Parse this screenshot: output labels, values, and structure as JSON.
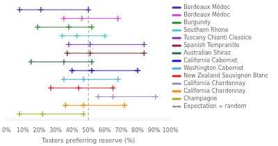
{
  "chart_data": {
    "type": "line",
    "xlabel": "Tasters preferring reserve (%)",
    "xlim": [
      0,
      1.0
    ],
    "xticks": [
      {
        "value": 0,
        "label": "0%"
      },
      {
        "value": 0.1,
        "label": "10%"
      },
      {
        "value": 0.2,
        "label": "20%"
      },
      {
        "value": 0.3,
        "label": "30%"
      },
      {
        "value": 0.4,
        "label": "40%"
      },
      {
        "value": 0.5,
        "label": "50%"
      },
      {
        "value": 0.6,
        "label": "60%"
      },
      {
        "value": 0.7,
        "label": "70%"
      },
      {
        "value": 0.8,
        "label": "80%"
      },
      {
        "value": 0.9,
        "label": "90%"
      },
      {
        "value": 1.0,
        "label": "100%"
      }
    ],
    "grid": false,
    "legend": "upper right",
    "tick_labels": "x",
    "marker": "plus",
    "series": [
      {
        "name": "Bordeaux Médoc",
        "color": "#3333aa",
        "values": [
          0.08,
          0.21,
          0.5
        ]
      },
      {
        "name": "Bordeaux Médoc",
        "color": "#cc44cc",
        "values": [
          0.35,
          0.46,
          0.68
        ]
      },
      {
        "name": "Burgundy",
        "color": "#228822",
        "values": [
          0.19,
          0.38,
          0.52
        ]
      },
      {
        "name": "Southern Rhone",
        "color": "#44cccc",
        "values": [
          0.34,
          0.43,
          0.6
        ]
      },
      {
        "name": "Tuscany Chianti Classico",
        "color": "#7733aa",
        "values": [
          0.38,
          0.51,
          0.84
        ]
      },
      {
        "name": "Spanish Tempranillo",
        "color": "#882222",
        "values": [
          0.37,
          0.51,
          0.84
        ]
      },
      {
        "name": "Australian Shiraz",
        "color": "#226655",
        "values": [
          0.15,
          0.35,
          0.52
        ]
      },
      {
        "name": "California Cabernet",
        "color": "#1111cc",
        "values": [
          0.4,
          0.52,
          0.8
        ]
      },
      {
        "name": "Washington Cabernet",
        "color": "#44aaee",
        "values": [
          0.35,
          0.47,
          0.68
        ]
      },
      {
        "name": "New Zealand Sauvignon Blanc",
        "color": "#cc2222",
        "values": [
          0.27,
          0.44,
          0.65
        ]
      },
      {
        "name": "California Chardonnay",
        "color": "#9988cc",
        "values": [
          0.56,
          0.65,
          0.91
        ]
      },
      {
        "name": "California Chardonnay",
        "color": "#ee8800",
        "values": [
          0.36,
          0.47,
          0.72
        ]
      },
      {
        "name": "Champagne",
        "color": "#aaaa22",
        "values": [
          0.08,
          0.22,
          0.47
        ]
      },
      {
        "name": "Expectation = random",
        "type": "vline",
        "color": "#999999",
        "line_style": "dashed",
        "values": [
          0.5
        ]
      }
    ]
  }
}
